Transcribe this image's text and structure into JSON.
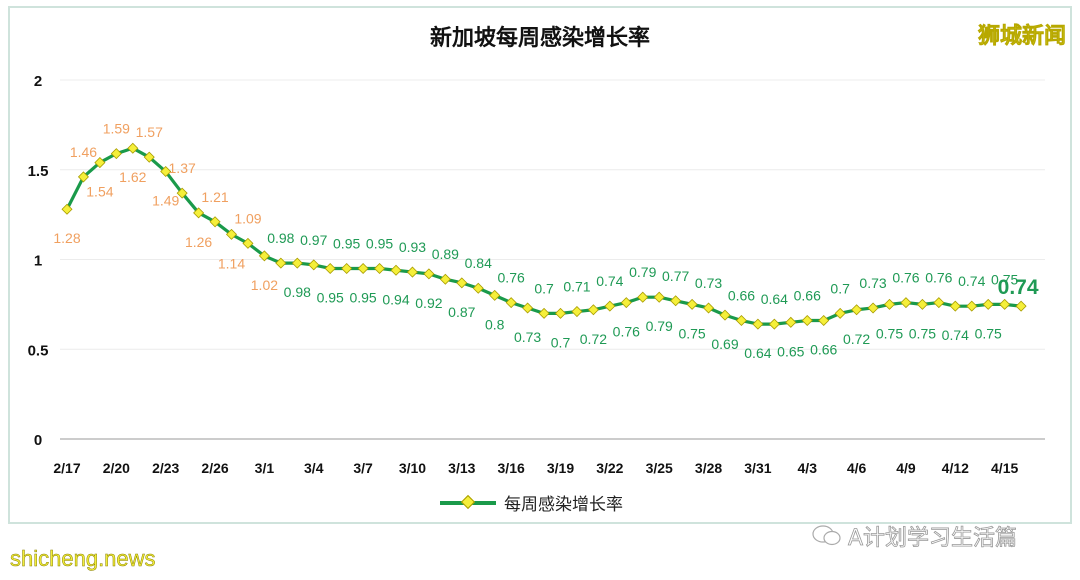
{
  "header": {
    "title": "新加坡每周感染增长率",
    "brand": "狮城新闻"
  },
  "legend": {
    "label": "每周感染增长率"
  },
  "footer": {
    "left_watermark": "shicheng.news",
    "right_watermark": "A计划学习生活篇"
  },
  "colors": {
    "line": "#1a9a4a",
    "marker": "#f5ef3a",
    "label_above_one": "#f0a060",
    "label_below_one": "#1f9a55",
    "grid": "#ececec"
  },
  "chart_data": {
    "type": "line",
    "title": "新加坡每周感染增长率",
    "xlabel": "",
    "ylabel": "",
    "ylim": [
      0,
      2
    ],
    "yticks": [
      0,
      0.5,
      1,
      1.5,
      2
    ],
    "xtick_labels": [
      "2/17",
      "2/20",
      "2/23",
      "2/26",
      "3/1",
      "3/4",
      "3/7",
      "3/10",
      "3/13",
      "3/16",
      "3/19",
      "3/22",
      "3/25",
      "3/28",
      "3/31",
      "4/3",
      "4/6",
      "4/9",
      "4/12",
      "4/15"
    ],
    "grid": true,
    "legend_position": "bottom",
    "series": [
      {
        "name": "每周感染增长率",
        "values": [
          1.28,
          1.46,
          1.54,
          1.59,
          1.62,
          1.57,
          1.49,
          1.37,
          1.26,
          1.21,
          1.14,
          1.09,
          1.02,
          0.98,
          0.98,
          0.97,
          0.95,
          0.95,
          0.95,
          0.95,
          0.94,
          0.93,
          0.92,
          0.89,
          0.87,
          0.84,
          0.8,
          0.76,
          0.73,
          0.7,
          0.7,
          0.71,
          0.72,
          0.74,
          0.76,
          0.79,
          0.79,
          0.77,
          0.75,
          0.73,
          0.69,
          0.66,
          0.64,
          0.64,
          0.65,
          0.66,
          0.66,
          0.7,
          0.72,
          0.73,
          0.75,
          0.76,
          0.75,
          0.76,
          0.74,
          0.74,
          0.75,
          0.75,
          0.74
        ]
      }
    ],
    "annotations": [
      {
        "text": "0.74",
        "emphasis": "last-value-bold"
      }
    ]
  }
}
